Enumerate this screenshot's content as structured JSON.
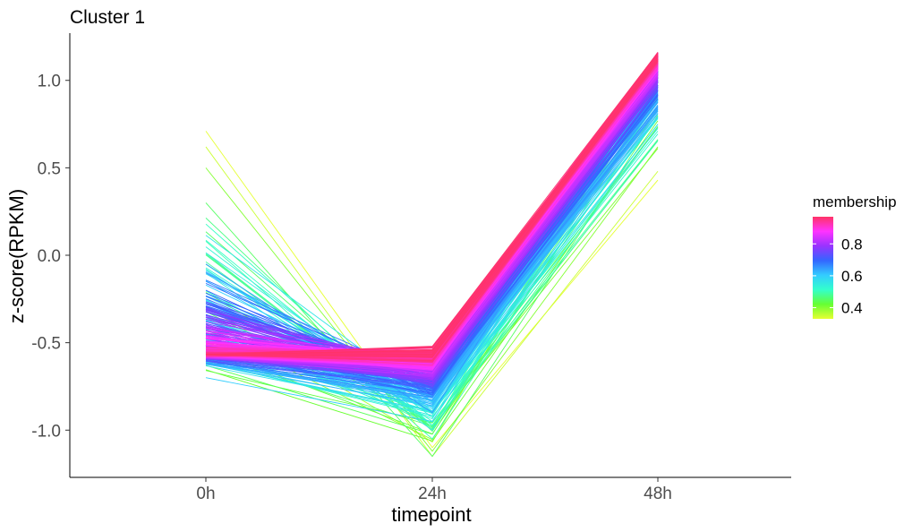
{
  "chart_data": {
    "type": "line",
    "title": "Cluster 1",
    "xlabel": "timepoint",
    "ylabel": "z-score(RPKM)",
    "categories": [
      "0h",
      "24h",
      "48h"
    ],
    "ylim": [
      -1.27,
      1.27
    ],
    "y_ticks": [
      -1.0,
      -0.5,
      0.0,
      0.5,
      1.0
    ],
    "y_tick_labels": [
      "-1.0",
      "-0.5",
      "0.0",
      "0.5",
      "1.0"
    ],
    "grid": false,
    "legend": {
      "title": "membership",
      "position": "right",
      "range": [
        0.33,
        0.97
      ],
      "ticks": [
        0.4,
        0.6,
        0.8
      ],
      "tick_labels": [
        "0.4",
        "0.6",
        "0.8"
      ],
      "colors": [
        "#e6ff33",
        "#66ff33",
        "#33ffcc",
        "#33ccff",
        "#3366ff",
        "#9933ff",
        "#ff33ff",
        "#ff3366"
      ]
    },
    "series_description": "Many gene profiles colored by membership; low membership profiles spread widely, high membership profiles cluster near the centroid",
    "series_extremes": [
      {
        "membership": 0.33,
        "values": [
          0.71,
          -1.1,
          0.43
        ]
      },
      {
        "membership": 0.35,
        "values": [
          0.62,
          -1.15,
          0.48
        ]
      },
      {
        "membership": 0.4,
        "values": [
          0.5,
          -1.12,
          0.62
        ]
      },
      {
        "membership": 0.45,
        "values": [
          0.3,
          -1.15,
          0.8
        ]
      },
      {
        "membership": 0.5,
        "values": [
          0.08,
          -1.05,
          0.9
        ]
      },
      {
        "membership": 0.55,
        "values": [
          -0.1,
          -1.0,
          0.98
        ]
      },
      {
        "membership": 0.6,
        "values": [
          -0.7,
          -0.95,
          1.05
        ]
      },
      {
        "membership": 0.65,
        "values": [
          -0.05,
          -0.9,
          1.1
        ]
      },
      {
        "membership": 0.7,
        "values": [
          -0.2,
          -0.8,
          1.08
        ]
      },
      {
        "membership": 0.75,
        "values": [
          -0.3,
          -0.75,
          1.1
        ]
      },
      {
        "membership": 0.8,
        "values": [
          -0.4,
          -0.7,
          1.12
        ]
      },
      {
        "membership": 0.85,
        "values": [
          -0.5,
          -0.65,
          1.14
        ]
      },
      {
        "membership": 0.9,
        "values": [
          -0.55,
          -0.6,
          1.15
        ]
      },
      {
        "membership": 0.95,
        "values": [
          -0.58,
          -0.55,
          1.16
        ]
      }
    ],
    "centroid": [
      -0.57,
      -0.57,
      1.16
    ]
  }
}
